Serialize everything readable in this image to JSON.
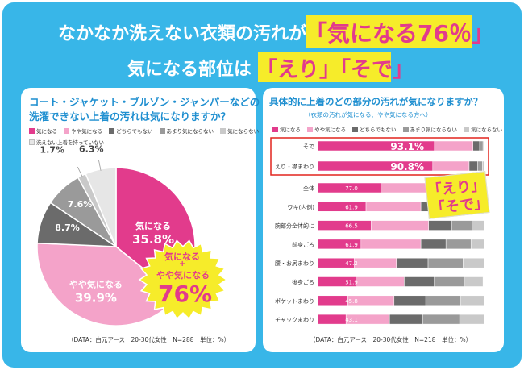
{
  "title": {
    "line1_text": "なかなか洗えない衣類の汚れが",
    "line1_highlight": "「気になる76％」",
    "line2_text": "気になる部位は",
    "line2_highlight": "「えり」「そで」"
  },
  "colors": {
    "frame": "#38b6e8",
    "title_pink": "#e23b8c",
    "highlight": "#f6ec2a",
    "question_blue": "#1f8fd0",
    "series": [
      "#e23b8c",
      "#f4a3c9",
      "#6b6b6b",
      "#9a9a9a",
      "#c9c9c9",
      "#e6e6e6"
    ]
  },
  "left": {
    "question_line1": "コート・ジャケット・ブルゾン・ジャンパーなどの",
    "question_line2": "洗濯できない上着の汚れは気になりますか？",
    "legend": [
      "気になる",
      "やや気になる",
      "どちらでもない",
      "あまり気にならない",
      "気にならない",
      "洗えない上着を持っていない"
    ],
    "callout_line1": "気になる",
    "callout_line2": "+",
    "callout_line3": "やや気になる",
    "callout_value": "76%",
    "note": "（DATA：白元アース　20-30代女性　N=288　単位：%）"
  },
  "right": {
    "question": "具体的に上着のどの部分の汚れが気になりますか？",
    "subquestion": "（衣類の汚れが気になる、やや気になる方へ）",
    "legend": [
      "気になる",
      "やや気になる",
      "どちらでもない",
      "あまり気にならない",
      "気にならない"
    ],
    "callout_line1": "「えり」",
    "callout_line2": "「そで」",
    "note": "（DATA：白元アース　20-30代女性　N=218　単位：%）"
  },
  "chart_data": [
    {
      "type": "pie",
      "categories": [
        "気になる",
        "やや気になる",
        "どちらでもない",
        "あまり気にならない",
        "気にならない",
        "洗えない上着を持っていない"
      ],
      "values": [
        35.8,
        39.9,
        8.7,
        7.6,
        1.7,
        6.3
      ],
      "labels": [
        "気になる 35.8%",
        "やや気になる 39.9%",
        "8.7%",
        "7.6%",
        "1.7%",
        "6.3%"
      ],
      "unit": "%"
    },
    {
      "type": "bar",
      "orientation": "horizontal",
      "stacked": true,
      "categories": [
        "そで",
        "えり・襟まわり",
        "全体",
        "ワキ(内側)",
        "腕部分全体的に",
        "前身ごろ",
        "腰・お尻まわり",
        "後身ごろ",
        "ポケットまわり",
        "チャックまわり"
      ],
      "labels": [
        "93.1%",
        "90.8%",
        "77.0",
        "61.9",
        "66.5",
        "61.9",
        "47.2",
        "51.9",
        "45.8",
        "43.1"
      ],
      "series": [
        {
          "name": "気になる",
          "values": [
            70,
            69,
            38,
            29,
            32,
            26,
            22,
            23,
            18,
            17
          ]
        },
        {
          "name": "やや気になる",
          "values": [
            23.1,
            21.8,
            39,
            32.9,
            34.5,
            35.9,
            25.2,
            28.9,
            27.8,
            26.1
          ]
        },
        {
          "name": "どちらでもない",
          "values": [
            4,
            5,
            12,
            15,
            14,
            15,
            19,
            18,
            19,
            20
          ]
        },
        {
          "name": "あまり気にならない",
          "values": [
            2,
            3,
            7,
            14,
            12,
            15,
            21,
            18,
            21,
            22
          ]
        },
        {
          "name": "気にならない",
          "values": [
            0.9,
            1.2,
            4,
            9.1,
            7.5,
            8.1,
            12.6,
            11.2,
            14.2,
            14.9
          ]
        }
      ],
      "xlim": [
        0,
        100
      ],
      "unit": "%"
    }
  ]
}
